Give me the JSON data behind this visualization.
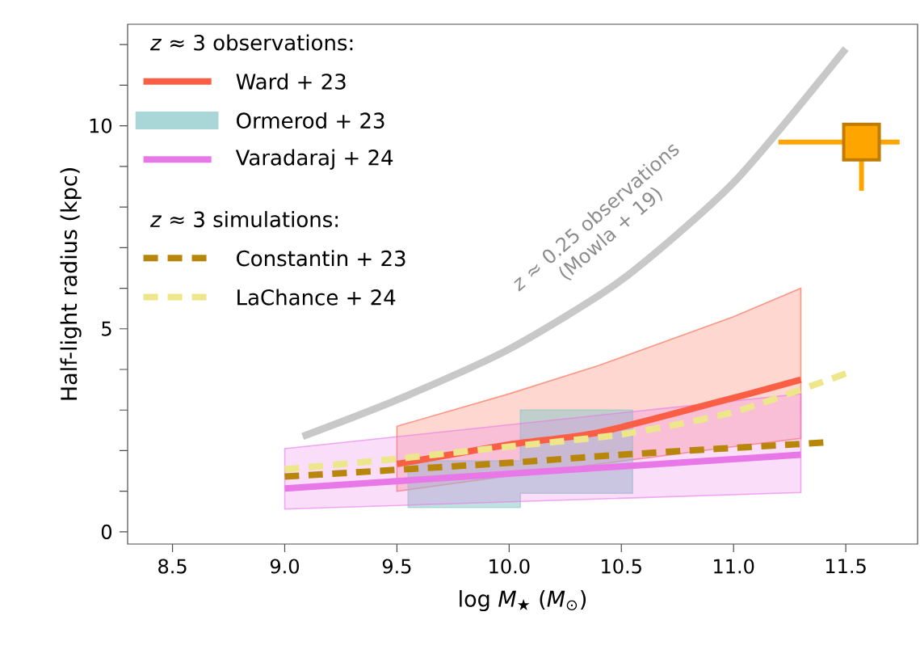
{
  "chart_data": {
    "type": "line",
    "xlabel": "log *M*$_{★}$ (*M*$_{⊙}$)",
    "ylabel": "Half-light radius (kpc)",
    "xlim": [
      8.3,
      11.82
    ],
    "ylim": [
      -0.3,
      12.5
    ],
    "xticks": [
      {
        "value": 8.5,
        "label": "8.5"
      },
      {
        "value": 9.0,
        "label": "9.0"
      },
      {
        "value": 9.5,
        "label": "9.5"
      },
      {
        "value": 10.0,
        "label": "10.0"
      },
      {
        "value": 10.5,
        "label": "10.5"
      },
      {
        "value": 11.0,
        "label": "11.0"
      },
      {
        "value": 11.5,
        "label": "11.5"
      }
    ],
    "yticks": [
      0,
      {
        "value": 1,
        "label": null
      },
      {
        "value": 2,
        "label": null
      },
      {
        "value": 3,
        "label": null
      },
      {
        "value": 4,
        "label": null
      },
      5,
      {
        "value": 6,
        "label": null
      },
      {
        "value": 7,
        "label": null
      },
      {
        "value": 8,
        "label": null
      },
      {
        "value": 9,
        "label": null
      },
      10,
      {
        "value": 11,
        "label": null
      },
      {
        "value": 12,
        "label": null
      }
    ],
    "grid": false,
    "legend": "top left",
    "annotations": [
      "*z* ≈ 3 observations:",
      "*z* ≈ 3 simulations:"
    ],
    "series": [
      {
        "name": "*z* ≈ 0.25 observations (Mowla + 19)",
        "color": "#c8c8c8",
        "x": [
          9.08,
          9.5,
          10.0,
          10.5,
          11.0,
          11.5
        ],
        "values": [
          2.35,
          3.25,
          4.5,
          6.2,
          8.6,
          11.9
        ]
      },
      {
        "name": "Ward + 23",
        "color": "#fa5f46",
        "x": [
          9.5,
          10.0,
          10.4,
          11.0,
          11.3
        ],
        "values": [
          1.67,
          2.15,
          2.45,
          3.3,
          3.75
        ],
        "lower": [
          1.0,
          1.38,
          1.67,
          2.1,
          2.3
        ],
        "upper": [
          2.6,
          3.4,
          4.1,
          5.3,
          6.0
        ]
      },
      {
        "name": "Ormerod + 23",
        "color": "#8cc8c8",
        "x": [
          9.55,
          10.05,
          10.05,
          10.55
        ],
        "values": [
          null,
          null,
          null,
          null
        ],
        "lower": [
          0.6,
          0.6,
          0.95,
          0.95
        ],
        "upper": [
          1.75,
          1.75,
          3.0,
          3.0
        ]
      },
      {
        "name": "Varadaraj + 24",
        "color": "#e878e8",
        "x": [
          9.0,
          11.3
        ],
        "values": [
          1.07,
          1.9
        ],
        "lower": [
          0.56,
          0.97
        ],
        "upper": [
          2.05,
          3.4
        ]
      },
      {
        "name": "Constantin + 23",
        "color": "#b8860b",
        "line_style": "dashed",
        "x": [
          9.0,
          10.0,
          10.5,
          11.4
        ],
        "values": [
          1.36,
          1.7,
          1.9,
          2.2
        ]
      },
      {
        "name": "LaChance + 24",
        "color": "#ede68a",
        "line_style": "dashed",
        "x": [
          9.0,
          9.5,
          10.0,
          10.5,
          11.0,
          11.5
        ],
        "values": [
          1.54,
          1.8,
          2.1,
          2.4,
          2.95,
          3.9
        ]
      },
      {
        "type": "scatter",
        "marker": "square",
        "color": "#ffa500",
        "x": [
          11.57
        ],
        "values": [
          9.6
        ],
        "errors": [
          [
            8.4,
            9.6
          ]
        ],
        "xerrors": [
          [
            11.2,
            11.74
          ]
        ]
      }
    ]
  }
}
